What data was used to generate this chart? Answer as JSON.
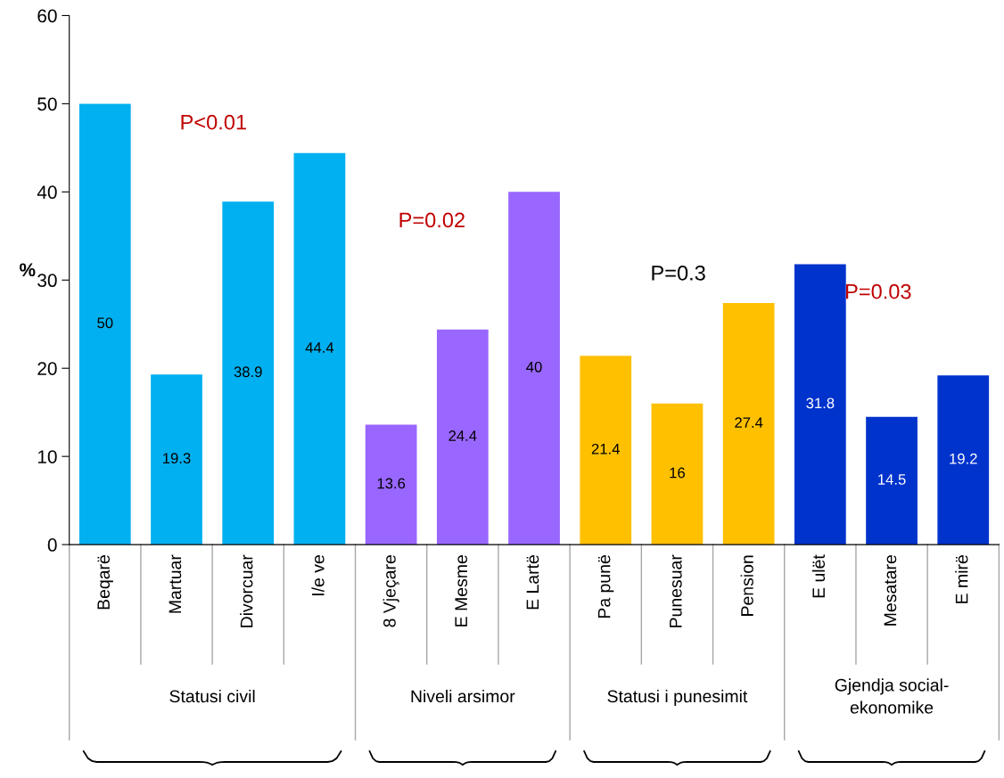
{
  "chart_data": {
    "type": "bar",
    "categories": [
      "Beqarë",
      "Martuar",
      "Divorcuar",
      "I/e ve",
      "8 Vjeçare",
      "E Mesme",
      "E Lartë",
      "Pa punë",
      "Punesuar",
      "Pension",
      "E ulët",
      "Mesatare",
      "E mirë"
    ],
    "values": [
      50,
      19.3,
      38.9,
      44.4,
      13.6,
      24.4,
      40,
      21.4,
      16,
      27.4,
      31.8,
      14.5,
      19.2
    ],
    "colors": [
      "#00b0f0",
      "#00b0f0",
      "#00b0f0",
      "#00b0f0",
      "#9966ff",
      "#9966ff",
      "#9966ff",
      "#ffc000",
      "#ffc000",
      "#ffc000",
      "#0033cc",
      "#0033cc",
      "#0033cc"
    ],
    "ylabel": "%",
    "ylim": [
      0,
      60
    ],
    "yticks": [
      0,
      10,
      20,
      30,
      40,
      50,
      60
    ],
    "data_labels": true,
    "grid": false,
    "annotations": [
      "P<0.01",
      "P=0.02",
      "P=0.3",
      "P=0.03",
      "Statusi civil",
      "Niveli arsimor",
      "Statusi i punesimit",
      "Gjendja social-\nekonomike"
    ]
  }
}
